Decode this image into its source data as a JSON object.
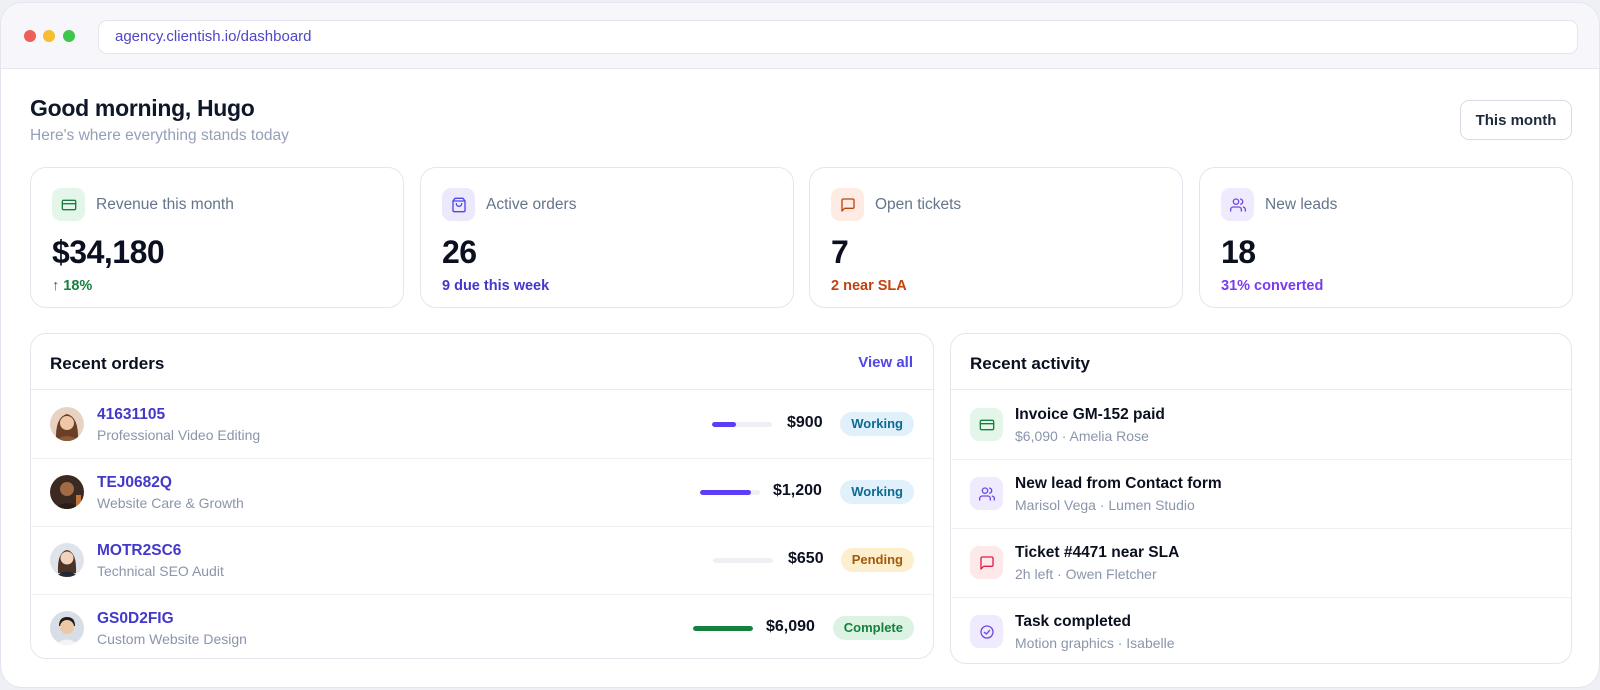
{
  "browser": {
    "url": "agency.clientish.io/dashboard"
  },
  "header": {
    "greeting": "Good morning, Hugo",
    "subtitle": "Here's where everything stands today",
    "period_button": "This month"
  },
  "colors": {
    "accent": "#4f46e5",
    "success": "#15803d",
    "warning": "#c2410c",
    "violet": "#7c3aed"
  },
  "stats": [
    {
      "label": "Revenue this month",
      "value": "$34,180",
      "sub": "↑ 18%",
      "icon": "credit-card-icon"
    },
    {
      "label": "Active orders",
      "value": "26",
      "sub": "9 due this week",
      "icon": "shopping-bag-icon"
    },
    {
      "label": "Open tickets",
      "value": "7",
      "sub": "2 near SLA",
      "icon": "message-square-icon"
    },
    {
      "label": "New leads",
      "value": "18",
      "sub": "31% converted",
      "icon": "users-icon"
    }
  ],
  "orders": {
    "title": "Recent orders",
    "view_all": "View all",
    "rows": [
      {
        "id": "41631105",
        "service": "Professional Video Editing",
        "progress": 0.4,
        "amount": "$900",
        "status": "Working"
      },
      {
        "id": "TEJ0682Q",
        "service": "Website Care & Growth",
        "progress": 0.85,
        "amount": "$1,200",
        "status": "Working"
      },
      {
        "id": "MOTR2SC6",
        "service": "Technical SEO Audit",
        "progress": 0.0,
        "amount": "$650",
        "status": "Pending"
      },
      {
        "id": "GS0D2FIG",
        "service": "Custom Website Design",
        "progress": 1.0,
        "amount": "$6,090",
        "status": "Complete"
      }
    ]
  },
  "activity": {
    "title": "Recent activity",
    "items": [
      {
        "title": "Invoice GM-152 paid",
        "sub": "$6,090 · Amelia Rose",
        "icon": "credit-card-icon"
      },
      {
        "title": "New lead from Contact form",
        "sub": "Marisol Vega · Lumen Studio",
        "icon": "users-icon"
      },
      {
        "title": "Ticket #4471 near SLA",
        "sub": "2h left · Owen Fletcher",
        "icon": "message-square-icon"
      },
      {
        "title": "Task completed",
        "sub": "Motion graphics · Isabelle",
        "icon": "check-circle-icon"
      }
    ]
  }
}
